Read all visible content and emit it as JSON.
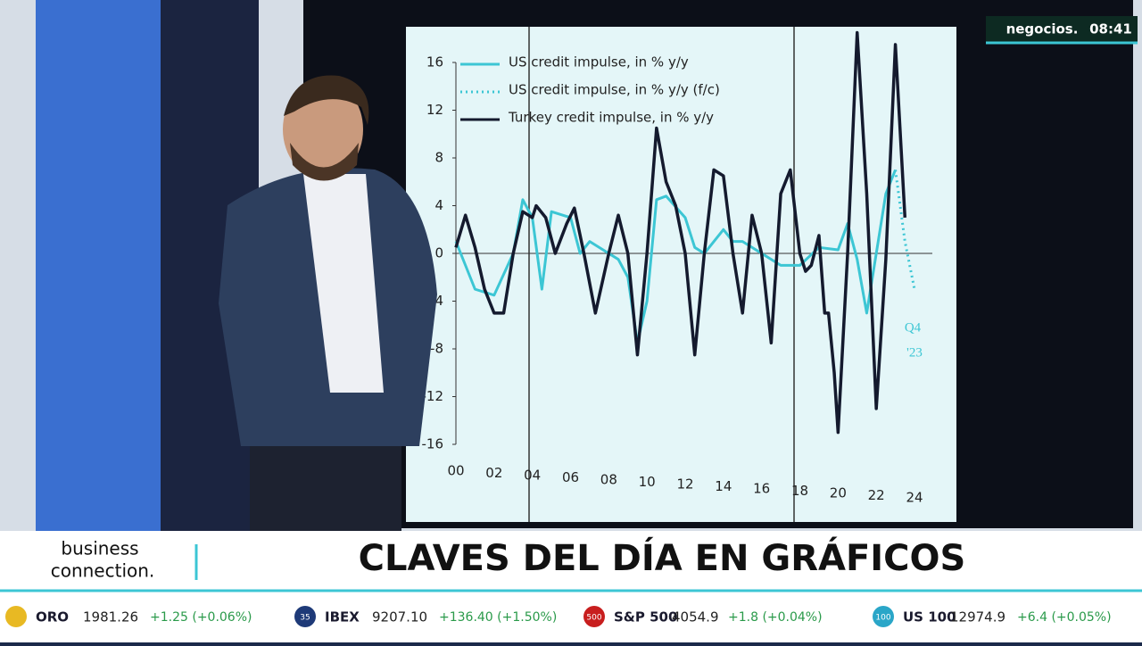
{
  "channel": {
    "logo": "negocios.",
    "time": "08:41"
  },
  "program": {
    "name_line1": "business",
    "name_line2": "connection.",
    "headline": "CLAVES DEL DÍA EN GRÁFICOS"
  },
  "ticker": [
    {
      "icon": "",
      "name": "ORO",
      "price": "1981.26",
      "change": "+1.25 (+0.06%)"
    },
    {
      "icon": "35",
      "name": "IBEX",
      "price": "9207.10",
      "change": "+136.40 (+1.50%)"
    },
    {
      "icon": "500",
      "name": "S&P 500",
      "price": "4054.9",
      "change": "+1.8 (+0.04%)"
    },
    {
      "icon": "100",
      "name": "US 100",
      "price": "12974.9",
      "change": "+6.4 (+0.05%)"
    }
  ],
  "chart": {
    "type": "line",
    "annotation_line1": "Q4",
    "annotation_line2": "'23",
    "xlim": [
      2000,
      2024
    ],
    "ylim": [
      -16,
      16
    ],
    "xticks": [
      {
        "value": 2000,
        "label": "00"
      },
      {
        "value": 2002,
        "label": "02"
      },
      {
        "value": 2004,
        "label": "04"
      },
      {
        "value": 2006,
        "label": "06"
      },
      {
        "value": 2008,
        "label": "08"
      },
      {
        "value": 2010,
        "label": "10"
      },
      {
        "value": 2012,
        "label": "12"
      },
      {
        "value": 2014,
        "label": "14"
      },
      {
        "value": 2016,
        "label": "16"
      },
      {
        "value": 2018,
        "label": "18"
      },
      {
        "value": 2020,
        "label": "20"
      },
      {
        "value": 2022,
        "label": "22"
      },
      {
        "value": 2024,
        "label": "24"
      }
    ],
    "yticks": [
      -16,
      -12,
      -8,
      -4,
      0,
      4,
      8,
      12,
      16
    ],
    "series": [
      {
        "name": "US credit impulse, in % y/y",
        "color": "#3cc6d4",
        "style": "solid",
        "x": [
          2000,
          2001,
          2002,
          2003,
          2003.5,
          2004,
          2004.5,
          2005,
          2006,
          2006.5,
          2007,
          2008,
          2008.5,
          2009,
          2009.5,
          2010,
          2010.5,
          2011,
          2012,
          2012.5,
          2013,
          2014,
          2014.5,
          2015,
          2016,
          2017,
          2018,
          2019,
          2020,
          2020.5,
          2021,
          2021.5,
          2022,
          2022.5,
          2023
        ],
        "values": [
          1,
          -3,
          -3.5,
          0,
          4.5,
          3,
          -3,
          3.5,
          3,
          0,
          1,
          0,
          -0.5,
          -2,
          -7.5,
          -4,
          4.5,
          4.8,
          3,
          0.5,
          0,
          2,
          1,
          1,
          0,
          -1,
          -1,
          0.5,
          0.3,
          2.5,
          -0.5,
          -5,
          0,
          5,
          7
        ]
      },
      {
        "name": "US credit impulse, in % y/y (f/c)",
        "color": "#3cc6d4",
        "style": "dotted",
        "x": [
          2023,
          2023.5,
          2024
        ],
        "values": [
          7,
          1,
          -3
        ]
      },
      {
        "name": "Turkey credit impulse, in % y/y",
        "color": "#141a2e",
        "style": "solid",
        "x": [
          2000,
          2000.5,
          2001,
          2001.5,
          2002,
          2002.5,
          2003,
          2003.5,
          2004,
          2004.2,
          2004.7,
          2005.2,
          2005.8,
          2006.2,
          2006.7,
          2007.3,
          2008,
          2008.5,
          2009,
          2009.5,
          2010,
          2010.5,
          2011,
          2011.5,
          2012,
          2012.5,
          2013,
          2013.5,
          2014,
          2014.5,
          2015,
          2015.5,
          2016,
          2016.5,
          2017,
          2017.5,
          2018,
          2018.3,
          2018.6,
          2019,
          2019.3,
          2019.5,
          2019.8,
          2020,
          2020.5,
          2021,
          2021.5,
          2022,
          2022.5,
          2023,
          2023.5
        ],
        "values": [
          0.5,
          3.2,
          0.5,
          -3,
          -5,
          -5,
          0,
          3.5,
          3,
          4,
          3,
          0,
          2.5,
          3.8,
          0,
          -5,
          0,
          3.2,
          0,
          -8.5,
          0,
          10.5,
          6,
          4,
          0,
          -8.5,
          0,
          7,
          6.5,
          0,
          -5,
          3.2,
          0,
          -7.5,
          5,
          7,
          0,
          -1.5,
          -1,
          1.5,
          -5,
          -5,
          -10,
          -15,
          0,
          18.5,
          5,
          -13,
          -0.5,
          17.5,
          3
        ]
      }
    ]
  }
}
